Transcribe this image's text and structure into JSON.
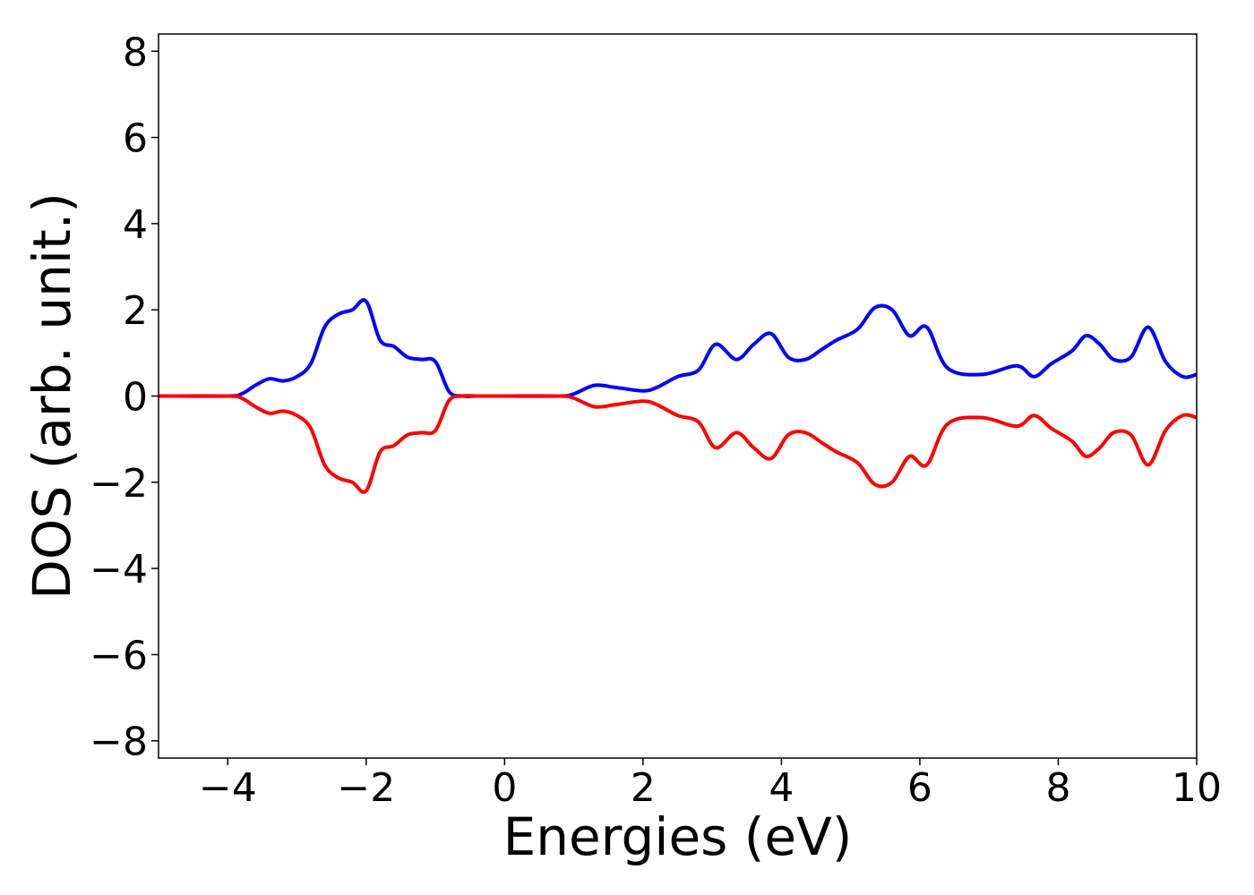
{
  "chart_data": {
    "type": "line",
    "title": "",
    "xlabel": "Energies (eV)",
    "ylabel": "DOS (arb. unit.)",
    "xlim": [
      -5,
      10
    ],
    "ylim": [
      -8.4,
      8.4
    ],
    "xticks": [
      -4,
      -2,
      0,
      2,
      4,
      6,
      8,
      10
    ],
    "xtick_labels": [
      "−4",
      "−2",
      "0",
      "2",
      "4",
      "6",
      "8",
      "10"
    ],
    "yticks": [
      8,
      6,
      4,
      2,
      0,
      -2,
      -4,
      -6,
      -8
    ],
    "ytick_labels": [
      "8",
      "6",
      "4",
      "2",
      "0",
      "−2",
      "−4",
      "−6",
      "−8"
    ],
    "grid": false,
    "legend": "none",
    "series": [
      {
        "color": "#0000ff",
        "x": [
          -5,
          -4,
          -3.8,
          -3.6,
          -3.4,
          -3.2,
          -3.0,
          -2.8,
          -2.6,
          -2.4,
          -2.2,
          -2.0,
          -1.8,
          -1.6,
          -1.4,
          -1.2,
          -1.0,
          -0.8,
          -0.6,
          -0.4,
          0,
          0.8,
          1.0,
          1.3,
          1.6,
          2.0,
          2.2,
          2.5,
          2.8,
          3.05,
          3.35,
          3.6,
          3.85,
          4.1,
          4.35,
          4.6,
          4.8,
          5.1,
          5.35,
          5.6,
          5.85,
          6.1,
          6.4,
          6.9,
          7.4,
          7.65,
          7.9,
          8.2,
          8.4,
          8.6,
          8.8,
          9.05,
          9.3,
          9.55,
          9.8,
          10
        ],
        "y": [
          0,
          0,
          0.05,
          0.25,
          0.4,
          0.35,
          0.45,
          0.75,
          1.6,
          1.9,
          2.0,
          2.2,
          1.3,
          1.15,
          0.9,
          0.85,
          0.8,
          0.1,
          0,
          0,
          0,
          0,
          0.05,
          0.25,
          0.2,
          0.12,
          0.2,
          0.45,
          0.6,
          1.2,
          0.85,
          1.2,
          1.45,
          0.9,
          0.85,
          1.1,
          1.3,
          1.55,
          2.05,
          2.0,
          1.4,
          1.6,
          0.65,
          0.5,
          0.7,
          0.45,
          0.75,
          1.05,
          1.4,
          1.2,
          0.85,
          0.9,
          1.6,
          0.8,
          0.45,
          0.5
        ]
      },
      {
        "color": "#ff0000",
        "x": [
          -5,
          -4,
          -3.8,
          -3.6,
          -3.4,
          -3.2,
          -3.0,
          -2.8,
          -2.6,
          -2.4,
          -2.2,
          -2.0,
          -1.8,
          -1.6,
          -1.4,
          -1.2,
          -1.0,
          -0.8,
          -0.6,
          -0.4,
          0,
          0.8,
          1.0,
          1.3,
          1.6,
          2.0,
          2.2,
          2.5,
          2.8,
          3.05,
          3.35,
          3.6,
          3.85,
          4.1,
          4.35,
          4.6,
          4.8,
          5.1,
          5.35,
          5.6,
          5.85,
          6.1,
          6.4,
          6.9,
          7.4,
          7.65,
          7.9,
          8.2,
          8.4,
          8.6,
          8.8,
          9.05,
          9.3,
          9.55,
          9.8,
          10
        ],
        "y": [
          0,
          0,
          -0.05,
          -0.25,
          -0.4,
          -0.35,
          -0.45,
          -0.75,
          -1.6,
          -1.9,
          -2.0,
          -2.2,
          -1.3,
          -1.15,
          -0.9,
          -0.85,
          -0.8,
          -0.1,
          0,
          0,
          0,
          0,
          -0.05,
          -0.25,
          -0.2,
          -0.12,
          -0.2,
          -0.45,
          -0.6,
          -1.2,
          -0.85,
          -1.2,
          -1.45,
          -0.9,
          -0.85,
          -1.1,
          -1.3,
          -1.55,
          -2.05,
          -2.0,
          -1.4,
          -1.6,
          -0.65,
          -0.5,
          -0.7,
          -0.45,
          -0.75,
          -1.05,
          -1.4,
          -1.2,
          -0.85,
          -0.9,
          -1.6,
          -0.8,
          -0.45,
          -0.5
        ]
      }
    ]
  }
}
